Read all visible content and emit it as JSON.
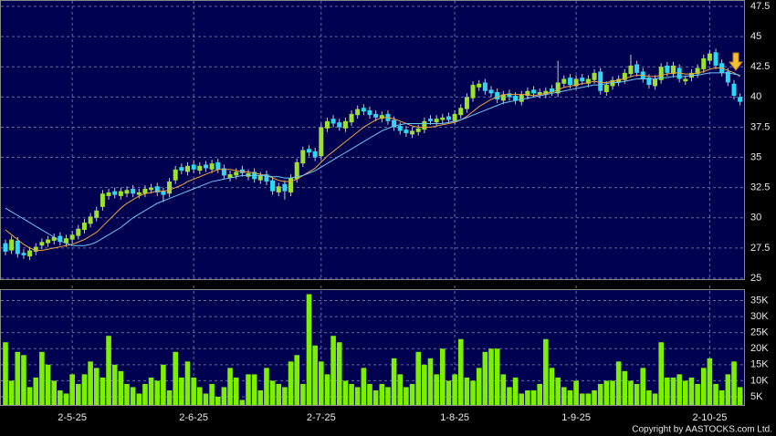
{
  "chart_data": [
    {
      "type": "candlestick",
      "up_color": "#9be22d",
      "down_color": "#2bd9f5",
      "open": [
        27.9,
        27.3,
        28.1,
        27.1,
        26.8,
        27.2,
        27.7,
        27.9,
        28.1,
        28.5,
        27.9,
        28.2,
        28.5,
        29.0,
        29.5,
        30.0,
        30.9,
        31.8,
        32.2,
        31.8,
        32.0,
        32.4,
        31.9,
        32.0,
        32.3,
        32.6,
        32.2,
        32.0,
        33.1,
        34.2,
        33.8,
        34.4,
        33.9,
        34.4,
        34.0,
        34.6,
        34.1,
        33.3,
        33.5,
        34.0,
        33.4,
        33.8,
        33.1,
        33.6,
        33.1,
        32.1,
        32.8,
        32.1,
        33.2,
        34.5,
        35.7,
        35.5,
        35.1,
        37.4,
        38.2,
        37.9,
        37.4,
        37.9,
        38.5,
        39.1,
        38.9,
        38.6,
        38.2,
        38.6,
        38.1,
        37.6,
        37.3,
        36.9,
        37.1,
        37.3,
        38.2,
        37.9,
        38.1,
        38.4,
        38.0,
        38.5,
        39.0,
        39.9,
        40.8,
        41.2,
        40.6,
        40.4,
        39.7,
        40.3,
        40.1,
        39.6,
        40.1,
        40.6,
        40.2,
        40.2,
        40.7,
        40.3,
        41.1,
        41.6,
        40.9,
        41.6,
        41.1,
        41.4,
        42.1,
        40.4,
        40.9,
        41.2,
        41.4,
        41.9,
        42.7,
        42.1,
        41.6,
        40.9,
        41.4,
        42.6,
        41.9,
        42.4,
        41.3,
        41.6,
        41.9,
        42.3,
        43.0,
        43.7,
        42.8,
        42.1,
        41.1,
        40.0
      ],
      "high": [
        28.2,
        28.5,
        28.4,
        27.4,
        27.6,
        27.9,
        28.3,
        28.5,
        28.7,
        28.8,
        28.6,
        28.9,
        29.4,
        29.9,
        30.4,
        30.9,
        32.3,
        32.4,
        32.5,
        32.5,
        32.6,
        32.7,
        32.4,
        32.7,
        32.8,
        32.9,
        32.5,
        33.3,
        34.3,
        34.5,
        34.6,
        34.7,
        34.6,
        34.7,
        34.8,
        34.9,
        34.4,
        33.9,
        34.1,
        34.3,
        34.0,
        34.1,
        33.8,
        33.9,
        33.4,
        32.9,
        33.1,
        33.6,
        34.9,
        35.9,
        36.0,
        35.8,
        37.8,
        38.3,
        38.5,
        38.2,
        38.3,
        38.9,
        39.3,
        39.4,
        39.2,
        38.9,
        38.8,
        38.9,
        38.4,
        37.9,
        37.6,
        37.5,
        37.7,
        38.3,
        38.5,
        38.5,
        38.6,
        38.7,
        38.9,
        39.4,
        40.3,
        41.3,
        41.4,
        41.5,
        40.9,
        40.7,
        40.5,
        40.6,
        40.4,
        40.5,
        40.8,
        40.9,
        40.7,
        40.8,
        41.0,
        43.0,
        41.8,
        41.9,
        41.8,
        41.9,
        41.8,
        42.3,
        42.4,
        41.3,
        41.7,
        41.8,
        42.3,
        43.5,
        43.0,
        42.4,
        41.9,
        41.8,
        42.8,
        42.9,
        42.9,
        42.7,
        41.8,
        42.3,
        42.7,
        43.5,
        43.9,
        44.0,
        43.1,
        42.4,
        41.4,
        40.3
      ],
      "low": [
        26.9,
        27.0,
        26.7,
        26.6,
        26.5,
        26.9,
        27.4,
        27.6,
        27.8,
        27.7,
        27.6,
        27.9,
        28.2,
        28.7,
        29.2,
        29.7,
        30.6,
        31.5,
        31.6,
        31.5,
        31.7,
        31.7,
        31.6,
        31.7,
        32.0,
        31.8,
        31.3,
        31.7,
        32.8,
        33.6,
        33.5,
        33.7,
        33.6,
        33.8,
        33.7,
        33.7,
        33.2,
        33.0,
        33.2,
        33.4,
        33.1,
        32.9,
        32.8,
        32.7,
        31.9,
        31.8,
        31.5,
        31.8,
        32.9,
        34.2,
        35.1,
        34.7,
        34.8,
        37.1,
        37.5,
        37.2,
        37.1,
        37.6,
        38.2,
        38.5,
        38.2,
        38.0,
        37.9,
        37.7,
        37.2,
        36.9,
        36.7,
        36.6,
        36.8,
        37.0,
        37.7,
        37.6,
        37.8,
        37.8,
        37.7,
        38.2,
        38.7,
        39.6,
        40.5,
        40.2,
        40.0,
        39.5,
        39.4,
        39.7,
        39.4,
        39.3,
        39.8,
        40.0,
        39.9,
        39.9,
        40.1,
        40.0,
        40.8,
        40.7,
        40.6,
        41.0,
        40.8,
        41.1,
        40.2,
        40.1,
        40.6,
        40.9,
        41.1,
        41.6,
        41.7,
        41.2,
        40.7,
        40.6,
        41.1,
        41.7,
        41.6,
        41.2,
        41.0,
        41.3,
        41.6,
        42.0,
        42.7,
        42.3,
        41.7,
        40.9,
        39.8,
        39.3
      ],
      "close": [
        27.2,
        28.2,
        27.0,
        26.9,
        27.3,
        27.6,
        28.0,
        28.2,
        28.4,
        28.0,
        28.3,
        28.6,
        29.1,
        29.6,
        30.1,
        30.6,
        32.0,
        32.1,
        31.9,
        32.2,
        32.3,
        32.0,
        32.1,
        32.4,
        32.5,
        32.1,
        31.9,
        33.0,
        34.0,
        33.9,
        34.3,
        34.0,
        34.3,
        34.1,
        34.5,
        34.0,
        33.5,
        33.6,
        33.8,
        33.7,
        33.7,
        33.2,
        33.5,
        33.0,
        32.2,
        32.6,
        32.2,
        33.3,
        34.6,
        35.6,
        35.4,
        35.0,
        37.5,
        38.0,
        37.8,
        37.5,
        38.0,
        38.6,
        39.0,
        38.8,
        38.5,
        38.3,
        38.5,
        38.0,
        37.5,
        37.2,
        37.0,
        37.2,
        37.4,
        38.0,
        38.0,
        38.2,
        38.3,
        38.1,
        38.6,
        39.1,
        40.0,
        41.0,
        41.1,
        40.5,
        40.3,
        39.8,
        40.2,
        40.0,
        39.7,
        40.2,
        40.5,
        40.3,
        40.4,
        40.5,
        40.4,
        41.2,
        41.5,
        41.0,
        41.5,
        41.3,
        41.5,
        42.0,
        40.5,
        41.0,
        41.4,
        41.5,
        42.0,
        42.6,
        42.0,
        41.5,
        41.0,
        41.5,
        42.5,
        42.0,
        42.6,
        41.5,
        41.5,
        42.0,
        42.4,
        43.2,
        43.6,
        42.6,
        42.0,
        41.2,
        40.1,
        39.6
      ],
      "lines": [
        {
          "color": "#f0a040",
          "values": [
            29.0,
            28.6,
            28.2,
            27.8,
            27.5,
            27.3,
            27.3,
            27.4,
            27.5,
            27.6,
            27.7,
            27.8,
            28.0,
            28.2,
            28.5,
            28.8,
            29.3,
            29.8,
            30.3,
            30.8,
            31.2,
            31.5,
            31.8,
            32.0,
            32.1,
            32.2,
            32.2,
            32.3,
            32.5,
            32.7,
            33.0,
            33.2,
            33.4,
            33.6,
            33.8,
            34.0,
            34.0,
            34.0,
            33.9,
            33.8,
            33.8,
            33.7,
            33.6,
            33.5,
            33.3,
            33.1,
            33.0,
            33.0,
            33.2,
            33.5,
            33.8,
            34.1,
            34.6,
            35.1,
            35.5,
            35.9,
            36.3,
            36.7,
            37.1,
            37.5,
            37.8,
            38.1,
            38.3,
            38.3,
            38.2,
            38.0,
            37.8,
            37.6,
            37.5,
            37.5,
            37.5,
            37.6,
            37.7,
            37.8,
            37.9,
            38.1,
            38.4,
            38.8,
            39.2,
            39.5,
            39.8,
            40.0,
            40.2,
            40.2,
            40.2,
            40.2,
            40.2,
            40.1,
            40.2,
            40.3,
            40.4,
            40.6,
            40.8,
            40.9,
            41.0,
            41.1,
            41.2,
            41.3,
            41.2,
            41.2,
            41.3,
            41.4,
            41.5,
            41.7,
            41.8,
            41.8,
            41.7,
            41.7,
            41.8,
            41.9,
            42.0,
            42.0,
            41.9,
            41.9,
            42.0,
            42.1,
            42.3,
            42.4,
            42.4,
            42.2,
            42.0,
            41.7
          ]
        },
        {
          "color": "#6cc6f0",
          "values": [
            30.8,
            30.5,
            30.2,
            29.9,
            29.6,
            29.3,
            29.0,
            28.7,
            28.4,
            28.1,
            27.9,
            27.7,
            27.7,
            27.7,
            27.8,
            28.0,
            28.3,
            28.6,
            28.9,
            29.2,
            29.6,
            30.0,
            30.3,
            30.6,
            30.9,
            31.2,
            31.4,
            31.6,
            31.8,
            32.0,
            32.2,
            32.4,
            32.6,
            32.8,
            33.0,
            33.1,
            33.2,
            33.3,
            33.4,
            33.5,
            33.5,
            33.5,
            33.5,
            33.5,
            33.4,
            33.4,
            33.3,
            33.3,
            33.4,
            33.5,
            33.7,
            33.9,
            34.2,
            34.5,
            34.8,
            35.1,
            35.4,
            35.7,
            36.0,
            36.3,
            36.6,
            36.9,
            37.2,
            37.4,
            37.6,
            37.7,
            37.8,
            37.8,
            37.8,
            37.8,
            37.8,
            37.8,
            37.8,
            37.9,
            38.0,
            38.1,
            38.3,
            38.5,
            38.7,
            38.9,
            39.1,
            39.3,
            39.5,
            39.6,
            39.7,
            39.8,
            39.9,
            40.0,
            40.1,
            40.2,
            40.3,
            40.4,
            40.5,
            40.6,
            40.7,
            40.8,
            40.9,
            41.0,
            41.0,
            41.1,
            41.2,
            41.2,
            41.3,
            41.4,
            41.5,
            41.5,
            41.5,
            41.5,
            41.6,
            41.6,
            41.7,
            41.7,
            41.7,
            41.8,
            41.8,
            41.9,
            42.0,
            42.0,
            42.0,
            42.0,
            41.9,
            41.8
          ]
        }
      ],
      "ylim": [
        25,
        47.5
      ],
      "yticks": [
        25,
        27.5,
        30,
        32.5,
        35,
        37.5,
        40,
        42.5,
        45,
        47.5
      ],
      "grid": true
    },
    {
      "type": "bar",
      "color": "#7cf000",
      "categories": [
        null,
        null,
        null,
        null,
        null,
        null,
        null,
        null,
        null,
        null,
        null,
        "2-5-25",
        null,
        null,
        null,
        null,
        null,
        null,
        null,
        null,
        null,
        null,
        null,
        null,
        null,
        null,
        null,
        null,
        null,
        null,
        null,
        "2-6-25",
        null,
        null,
        null,
        null,
        null,
        null,
        null,
        null,
        null,
        null,
        null,
        null,
        null,
        null,
        null,
        null,
        null,
        null,
        null,
        null,
        "2-7-25",
        null,
        null,
        null,
        null,
        null,
        null,
        null,
        null,
        null,
        null,
        null,
        null,
        null,
        null,
        null,
        null,
        null,
        null,
        null,
        null,
        null,
        "1-8-25",
        null,
        null,
        null,
        null,
        null,
        null,
        null,
        null,
        null,
        null,
        null,
        null,
        null,
        null,
        null,
        null,
        null,
        null,
        null,
        "1-9-25",
        null,
        null,
        null,
        null,
        null,
        null,
        null,
        null,
        null,
        null,
        null,
        null,
        null,
        null,
        null,
        null,
        null,
        null,
        null,
        null,
        null,
        "2-10-25",
        null,
        null,
        null,
        null,
        null
      ],
      "values": [
        22000,
        10000,
        19000,
        18000,
        8000,
        11000,
        19000,
        15000,
        10000,
        7000,
        6000,
        12000,
        9000,
        12000,
        16000,
        14000,
        11000,
        24000,
        15000,
        13000,
        9000,
        8000,
        6000,
        9000,
        11000,
        10000,
        15000,
        7000,
        19000,
        11000,
        16000,
        11000,
        8000,
        6000,
        9000,
        5000,
        8000,
        14000,
        11000,
        4000,
        12000,
        12000,
        7000,
        14000,
        10000,
        9000,
        8000,
        16000,
        18000,
        9000,
        37000,
        21000,
        16000,
        12000,
        24000,
        22000,
        10000,
        9000,
        8000,
        14000,
        9000,
        7000,
        9000,
        8000,
        17000,
        12000,
        8000,
        9000,
        19000,
        15000,
        17000,
        12000,
        20000,
        10000,
        12000,
        23000,
        11000,
        10000,
        14000,
        19000,
        20000,
        20000,
        12000,
        8000,
        11000,
        6000,
        7000,
        7000,
        9000,
        23000,
        14000,
        11000,
        8000,
        7000,
        10000,
        6000,
        6000,
        7000,
        9000,
        10000,
        10000,
        16000,
        13000,
        10000,
        9000,
        14000,
        7000,
        6000,
        22000,
        11000,
        11000,
        12000,
        10000,
        11000,
        9000,
        14000,
        17000,
        9000,
        7000,
        12000,
        16000,
        8000
      ],
      "ylim": [
        3000,
        38000
      ],
      "yticks": [
        {
          "value": 5000,
          "label": "5K"
        },
        {
          "value": 10000,
          "label": "10K"
        },
        {
          "value": 15000,
          "label": "15K"
        },
        {
          "value": 20000,
          "label": "20K"
        },
        {
          "value": 25000,
          "label": "25K"
        },
        {
          "value": 30000,
          "label": "30K"
        },
        {
          "value": 35000,
          "label": "35K"
        }
      ],
      "grid": true
    }
  ],
  "copyright": "Copyright by AASTOCKS.com Ltd."
}
